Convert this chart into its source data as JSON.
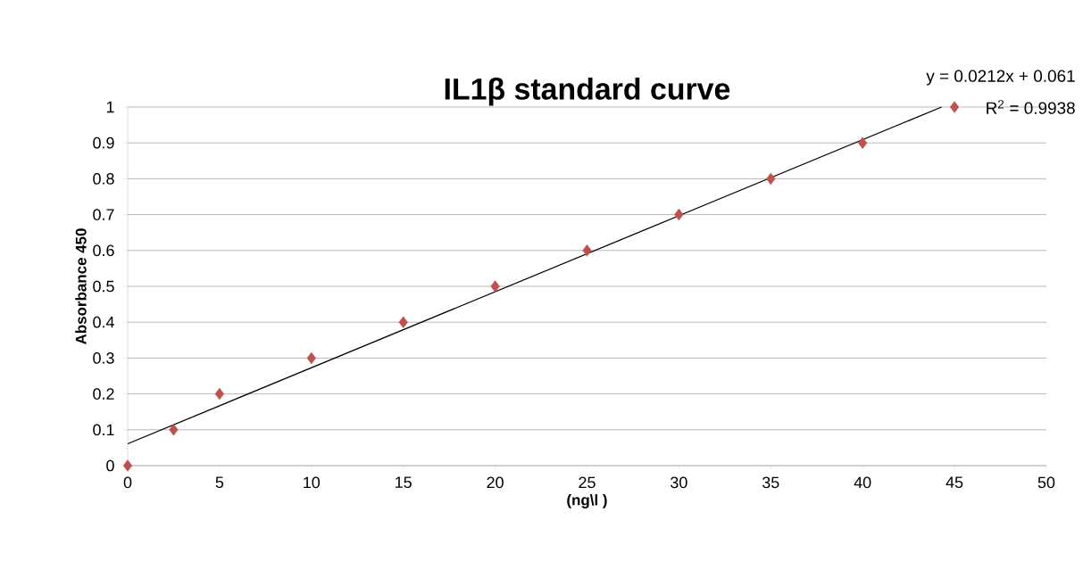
{
  "chart_data": {
    "type": "scatter",
    "title": "IL1β standard curve",
    "xlabel": "(ng\\l  )",
    "ylabel": "Absorbance 450",
    "x": [
      0,
      2.5,
      5,
      10,
      15,
      20,
      25,
      30,
      35,
      40,
      45
    ],
    "series": [
      {
        "color": "#c0504d",
        "marker": "diamond",
        "values": [
          0,
          0.1,
          0.2,
          0.3,
          0.4,
          0.5,
          0.6,
          0.7,
          0.8,
          0.9,
          1
        ]
      },
      {
        "type": "line",
        "color": "#000000",
        "marker": "none",
        "x": [
          0,
          44.3
        ],
        "values": [
          0.061,
          1.0
        ]
      }
    ],
    "annotations": [
      "y = 0.0212x + 0.061",
      "R$^{2}$ = 0.9938"
    ],
    "xlim": [
      0,
      50
    ],
    "ylim": [
      0,
      1
    ],
    "xticks": [
      0,
      5,
      10,
      15,
      20,
      25,
      30,
      35,
      40,
      45,
      50
    ],
    "yticks": [
      0,
      0.1,
      0.2,
      0.3,
      0.4,
      0.5,
      0.6,
      0.7,
      0.8,
      0.9,
      1
    ],
    "grid": "y"
  }
}
